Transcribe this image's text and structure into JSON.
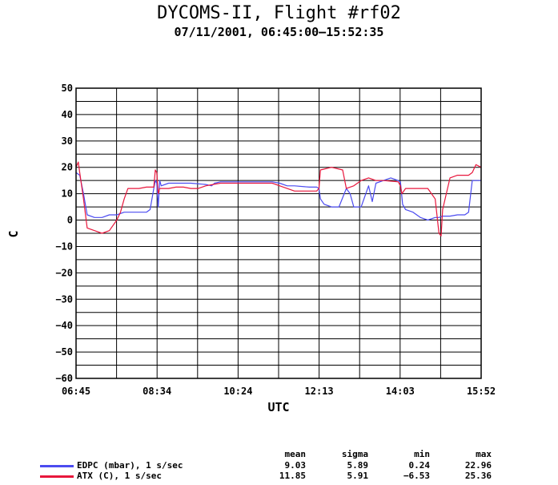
{
  "header": {
    "title": "DYCOMS-II, Flight #rf02",
    "subtitle": "07/11/2001, 06:45:00–15:52:35"
  },
  "chart_data": {
    "type": "line",
    "title": "DYCOMS-II, Flight #rf02",
    "subtitle": "07/11/2001, 06:45:00–15:52:35",
    "xlabel": "UTC",
    "ylabel": "C",
    "x_tick_labels": [
      "06:45",
      "08:34",
      "10:24",
      "12:13",
      "14:03",
      "15:52"
    ],
    "xlim": [
      "06:45",
      "15:52"
    ],
    "ylim": [
      -60,
      50
    ],
    "y_ticks": [
      50,
      40,
      30,
      20,
      10,
      0,
      -10,
      -20,
      -30,
      -40,
      -50,
      -60
    ],
    "y_tick_labels": [
      "50",
      "40",
      "30",
      "20",
      "10",
      "0",
      "−10",
      "−20",
      "−30",
      "−40",
      "−50",
      "−60"
    ],
    "grid": true,
    "series": [
      {
        "name": "EDPC (mbar), 1 s/sec",
        "color": "#4b4bf0",
        "x": [
          "06:45",
          "06:50",
          "06:55",
          "07:00",
          "07:10",
          "07:20",
          "07:30",
          "07:40",
          "07:50",
          "07:55",
          "08:00",
          "08:10",
          "08:20",
          "08:25",
          "08:30",
          "08:32",
          "08:34",
          "08:36",
          "08:38",
          "08:40",
          "08:50",
          "09:00",
          "09:20",
          "09:40",
          "09:48",
          "09:52",
          "10:00",
          "10:20",
          "10:40",
          "11:00",
          "11:10",
          "11:20",
          "11:30",
          "11:40",
          "12:00",
          "12:10",
          "12:13",
          "12:15",
          "12:20",
          "12:30",
          "12:40",
          "12:50",
          "12:55",
          "13:00",
          "13:10",
          "13:20",
          "13:25",
          "13:30",
          "13:40",
          "13:50",
          "14:00",
          "14:03",
          "14:06",
          "14:10",
          "14:20",
          "14:30",
          "14:40",
          "14:50",
          "14:55",
          "15:00",
          "15:10",
          "15:20",
          "15:30",
          "15:35",
          "15:40",
          "15:45",
          "15:52"
        ],
        "y": [
          18,
          17,
          10,
          2,
          1,
          1,
          2,
          2,
          3,
          3,
          3,
          3,
          3,
          4,
          12,
          15,
          14,
          5,
          15,
          13,
          14,
          14,
          14,
          13.5,
          13,
          14,
          14.5,
          14.5,
          14.5,
          14.5,
          14.5,
          14,
          13,
          13,
          12.5,
          12.5,
          12,
          8,
          6,
          5,
          5,
          12,
          10,
          5,
          5,
          13,
          7,
          14,
          15,
          16,
          15,
          14.5,
          6,
          4,
          3,
          1,
          0,
          1,
          1,
          1.5,
          1.5,
          2,
          2,
          3,
          15,
          15,
          15
        ]
      },
      {
        "name": "ATX (C), 1 s/sec",
        "color": "#e8173c",
        "x": [
          "06:45",
          "06:48",
          "06:50",
          "06:55",
          "07:00",
          "07:10",
          "07:20",
          "07:30",
          "07:40",
          "07:45",
          "07:50",
          "07:55",
          "08:00",
          "08:10",
          "08:20",
          "08:25",
          "08:30",
          "08:32",
          "08:34",
          "08:36",
          "08:38",
          "08:40",
          "08:50",
          "09:00",
          "09:10",
          "09:20",
          "09:30",
          "09:40",
          "09:50",
          "10:00",
          "10:10",
          "10:20",
          "10:40",
          "11:00",
          "11:10",
          "11:20",
          "11:30",
          "11:40",
          "12:00",
          "12:10",
          "12:13",
          "12:15",
          "12:30",
          "12:45",
          "12:50",
          "13:00",
          "13:10",
          "13:20",
          "13:30",
          "13:40",
          "14:00",
          "14:03",
          "14:05",
          "14:10",
          "14:20",
          "14:30",
          "14:40",
          "14:50",
          "14:55",
          "14:58",
          "15:00",
          "15:10",
          "15:20",
          "15:30",
          "15:35",
          "15:40",
          "15:45",
          "15:52"
        ],
        "y": [
          20,
          22,
          18,
          8,
          -3,
          -4,
          -5,
          -4,
          0,
          3,
          8,
          12,
          12,
          12,
          12.5,
          12.5,
          12.5,
          19,
          18,
          10,
          12,
          12,
          12,
          12.5,
          12.5,
          12,
          12,
          13,
          13.5,
          14,
          14,
          14,
          14,
          14,
          14,
          13,
          12,
          11,
          11,
          11,
          12,
          19,
          20,
          19,
          12,
          13,
          15,
          16,
          15,
          15,
          14.5,
          13,
          10,
          12,
          12,
          12,
          12,
          8,
          -5,
          -6,
          4,
          16,
          17,
          17,
          17,
          18,
          21,
          20
        ]
      }
    ],
    "legend": {
      "placement": "bottom-left",
      "columns": [
        "mean",
        "sigma",
        "min",
        "max"
      ],
      "rows": [
        {
          "name": "EDPC (mbar), 1 s/sec",
          "color": "#4b4bf0",
          "mean": "9.03",
          "sigma": "5.89",
          "min": "0.24",
          "max": "22.96"
        },
        {
          "name": "ATX (C), 1 s/sec",
          "color": "#e8173c",
          "mean": "11.85",
          "sigma": "5.91",
          "min": "−6.53",
          "max": "25.36"
        }
      ]
    }
  }
}
